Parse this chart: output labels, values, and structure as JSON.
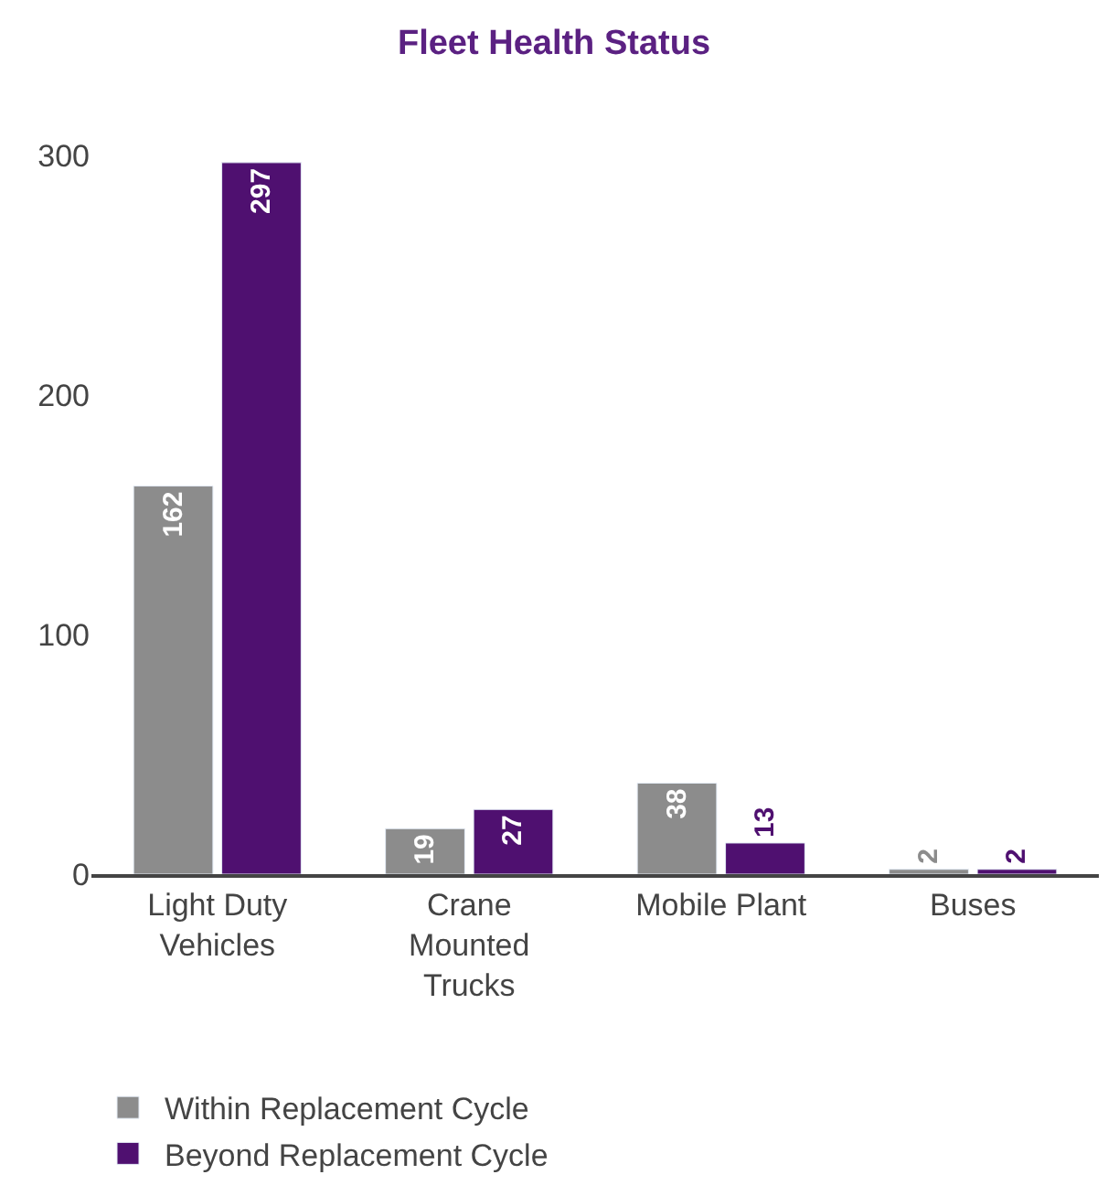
{
  "chart_data": {
    "type": "bar",
    "title": "Fleet Health Status",
    "categories": [
      "Light Duty Vehicles",
      "Crane Mounted Trucks",
      "Mobile Plant",
      "Buses"
    ],
    "series": [
      {
        "name": "Within Replacement Cycle",
        "color": "#8c8c8c",
        "values": [
          162,
          19,
          38,
          2
        ]
      },
      {
        "name": "Beyond Replacement Cycle",
        "color": "#4f1070",
        "values": [
          297,
          27,
          13,
          2
        ]
      }
    ],
    "ylim": [
      0,
      300
    ],
    "yticks": [
      0,
      100,
      200,
      300
    ],
    "legend": "bottom left",
    "data_labels": true
  }
}
